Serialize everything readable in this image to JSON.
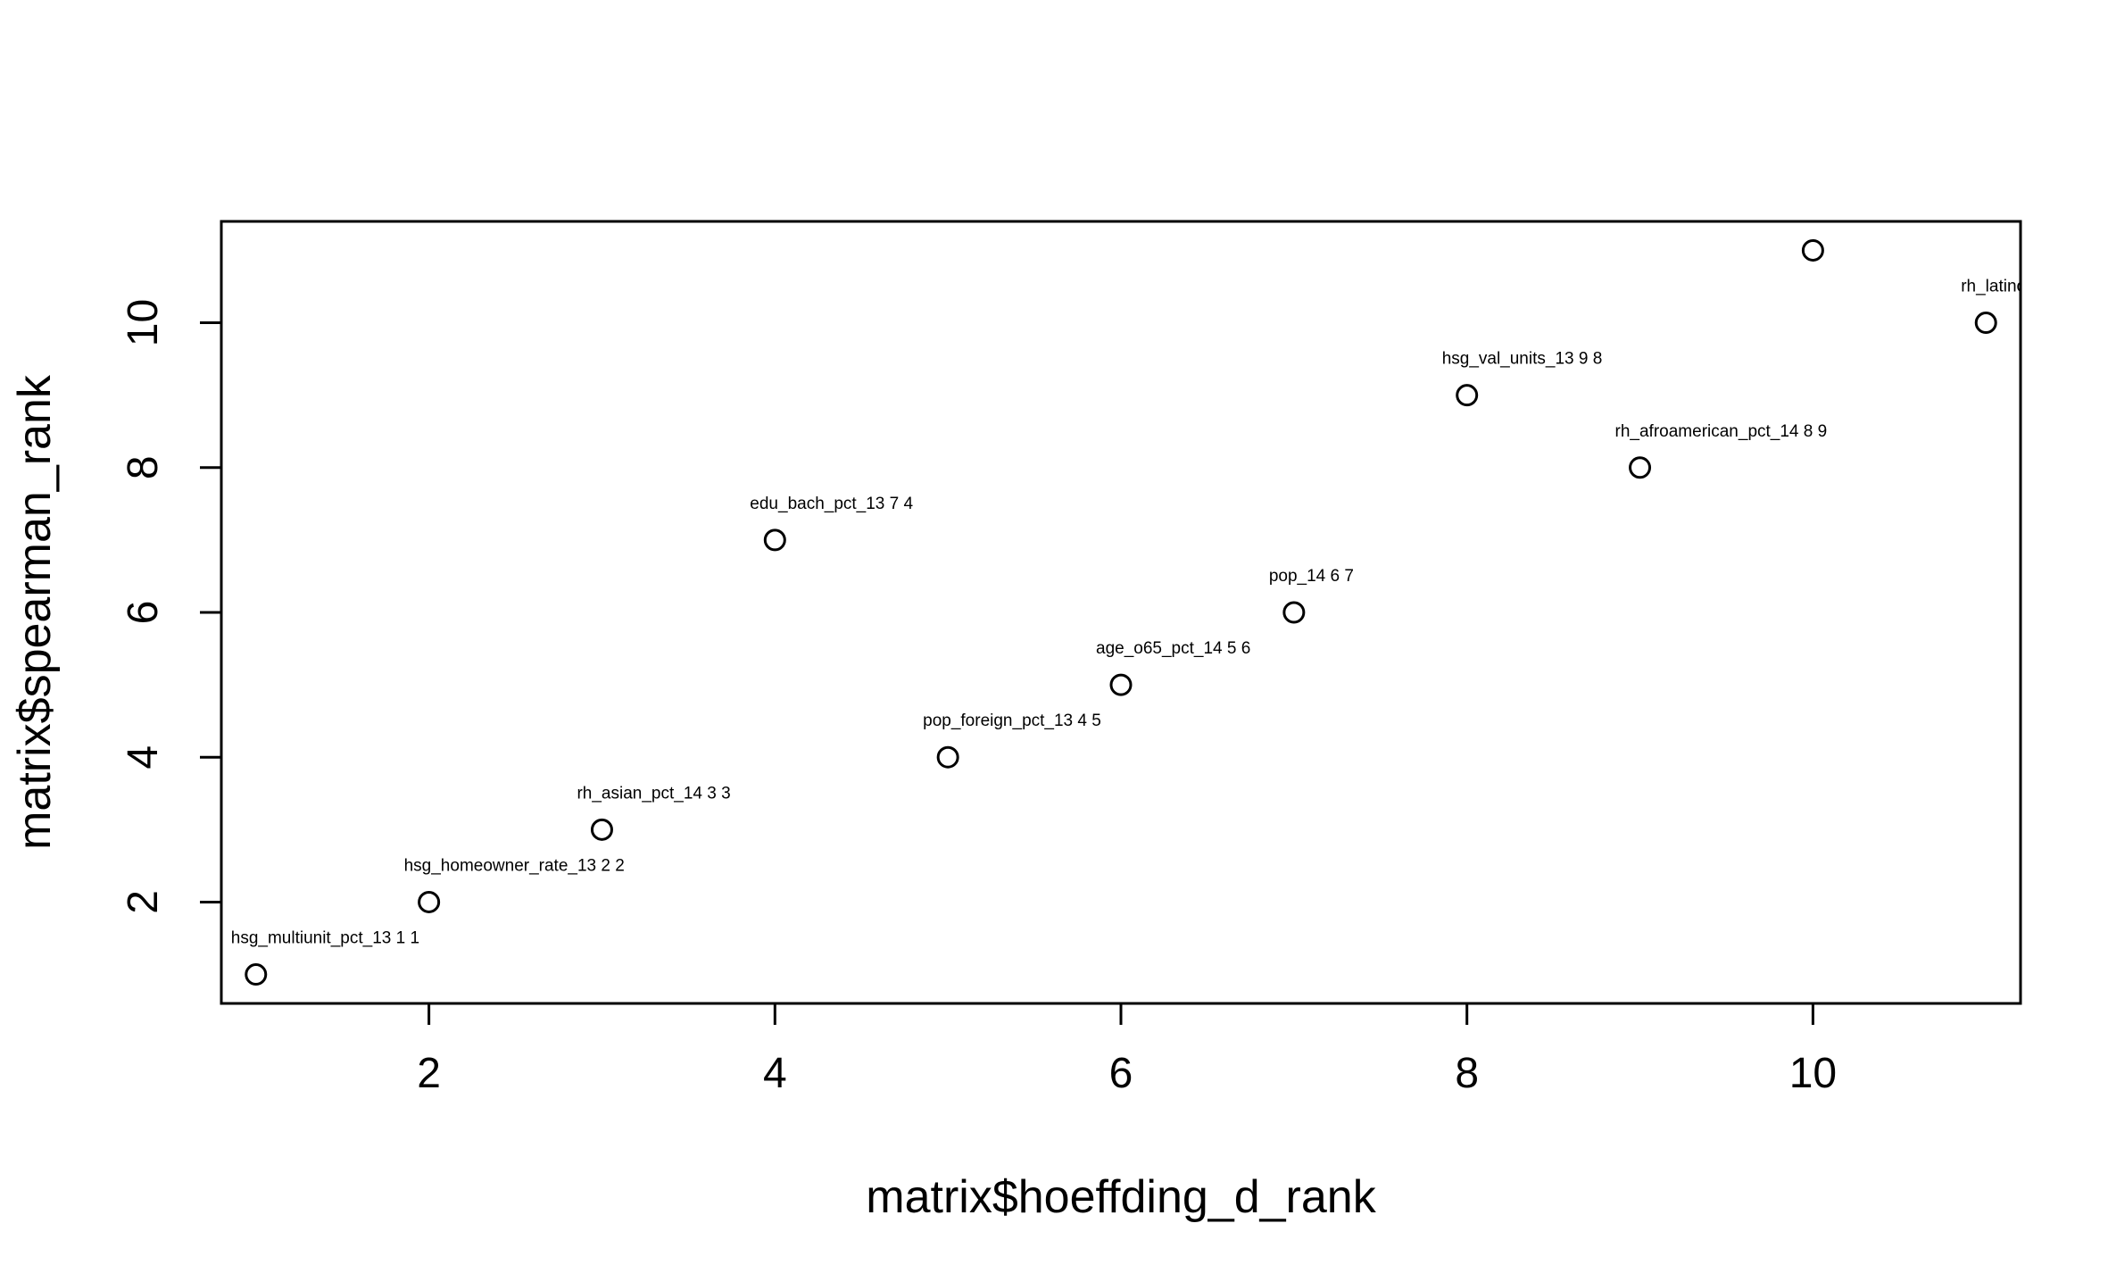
{
  "chart_data": {
    "type": "scatter",
    "title": "",
    "xlabel": "matrix$hoeffding_d_rank",
    "ylabel": "matrix$spearman_rank",
    "xlim": [
      0.8,
      11.2
    ],
    "ylim": [
      0.6,
      11.4
    ],
    "xticks": [
      2,
      4,
      6,
      8,
      10
    ],
    "yticks": [
      2,
      4,
      6,
      8,
      10
    ],
    "grid": false,
    "legend": "none",
    "points": [
      {
        "x": 1,
        "y": 1,
        "label": "hsg_multiunit_pct_13 1 1"
      },
      {
        "x": 2,
        "y": 2,
        "label": "hsg_homeowner_rate_13 2 2"
      },
      {
        "x": 3,
        "y": 3,
        "label": "rh_asian_pct_14 3 3"
      },
      {
        "x": 4,
        "y": 7,
        "label": "edu_bach_pct_13 7 4"
      },
      {
        "x": 5,
        "y": 4,
        "label": "pop_foreign_pct_13 4 5"
      },
      {
        "x": 6,
        "y": 5,
        "label": "age_o65_pct_14 5 6"
      },
      {
        "x": 7,
        "y": 6,
        "label": "pop_14 6 7"
      },
      {
        "x": 8,
        "y": 9,
        "label": "hsg_val_units_13 9 8"
      },
      {
        "x": 9,
        "y": 8,
        "label": "rh_afroamerican_pct_14 8 9"
      },
      {
        "x": 10,
        "y": 11,
        "label": "_ _ _ _"
      },
      {
        "x": 11,
        "y": 10,
        "label": "rh_latino_"
      }
    ]
  }
}
